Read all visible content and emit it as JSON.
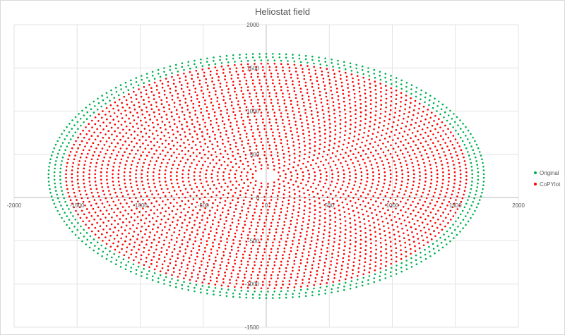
{
  "chart_data": {
    "type": "scatter",
    "title": "Heliostat field",
    "xlabel": "",
    "ylabel": "",
    "xlim": [
      -2000,
      2000
    ],
    "ylim": [
      -1500,
      2000
    ],
    "x_ticks": [
      "-2000",
      "-1500",
      "-1000",
      "-500",
      "0",
      "500",
      "1000",
      "1500",
      "2000"
    ],
    "y_ticks": [
      "2000",
      "1500",
      "1000",
      "500",
      "0",
      "-500",
      "-1000",
      "-1500"
    ],
    "grid": true,
    "legend_position": "right",
    "series": [
      {
        "name": "Original",
        "color": "#00b050",
        "field": {
          "inner_radius": 100,
          "ring_spacing": 42,
          "ring_count": 33,
          "y_center": 250,
          "ry_scale": 0.9,
          "x_scale": 1.1,
          "outer_extra_rings": 3
        }
      },
      {
        "name": "CoPYlot",
        "color": "#ff0000",
        "field": {
          "inner_radius": 100,
          "ring_spacing": 42,
          "ring_count": 33,
          "y_center": 250,
          "ry_scale": 0.9,
          "x_scale": 1.1,
          "outer_extra_rings": 0
        }
      }
    ]
  }
}
